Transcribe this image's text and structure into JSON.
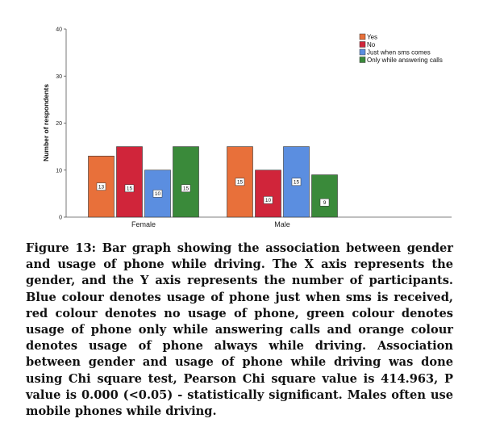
{
  "chart_data": {
    "type": "bar",
    "categories": [
      "Female",
      "Male"
    ],
    "series": [
      {
        "name": "Yes",
        "values": [
          13,
          15
        ],
        "color": "#e8703a"
      },
      {
        "name": "No",
        "values": [
          15,
          10
        ],
        "color": "#d0253a"
      },
      {
        "name": "Just when sms comes",
        "values": [
          10,
          15
        ],
        "color": "#5b8ee0"
      },
      {
        "name": "Only while answering calls",
        "values": [
          15,
          9
        ],
        "color": "#3a8a3a"
      }
    ],
    "ylabel": "Number of respondents",
    "xlabel": "",
    "ylim": [
      0,
      40
    ],
    "yticks": [
      0,
      10,
      20,
      30,
      40
    ],
    "legend_position": "top-right",
    "grid": false,
    "data_labels": true
  },
  "caption": {
    "text": "Figure 13: Bar graph showing the association between gender and usage of phone while driving. The X axis represents the gender, and the Y axis represents the number of participants. Blue colour denotes usage of phone just when sms is received, red colour denotes no usage of phone, green colour denotes usage of phone only while answering calls and orange colour denotes usage of phone always while driving. Association between gender and usage of phone while driving was done using Chi square test, Pearson Chi square value is 414.963, P value is 0.000 (<0.05) - statistically significant. Males often use mobile phones while driving."
  }
}
